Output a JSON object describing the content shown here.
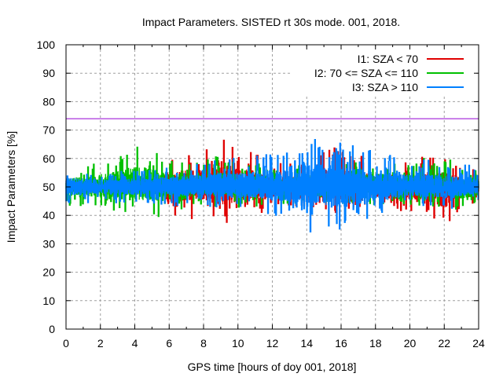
{
  "chart_data": {
    "type": "line",
    "title": "Impact Parameters. SISTED rt 30s mode. 001, 2018.",
    "xlabel": "GPS time [hours of doy 001, 2018]",
    "ylabel": "Impact Parameters [%]",
    "xlim": [
      0,
      24
    ],
    "ylim": [
      0,
      100
    ],
    "xticks": [
      "0",
      "2",
      "4",
      "6",
      "8",
      "10",
      "12",
      "14",
      "16",
      "18",
      "20",
      "22",
      "24"
    ],
    "yticks": [
      "0",
      "10",
      "20",
      "30",
      "40",
      "50",
      "60",
      "70",
      "80",
      "90",
      "100"
    ],
    "grid": true,
    "legend_position": "top-right",
    "reference_line": {
      "value": 74,
      "color": "#9400d3"
    },
    "series": [
      {
        "name": "I1: SZA < 70",
        "color": "#e00000",
        "hours": [
          0,
          1,
          2,
          3,
          4,
          5,
          6,
          7,
          8,
          9,
          10,
          11,
          12,
          13,
          14,
          15,
          16,
          17,
          18,
          19,
          20,
          21,
          22,
          23,
          24
        ],
        "min": [
          null,
          null,
          null,
          null,
          null,
          null,
          40,
          38,
          40,
          36,
          38,
          40,
          42,
          43,
          42,
          40,
          40,
          42,
          42,
          42,
          40,
          40,
          33,
          42,
          44
        ],
        "max": [
          null,
          null,
          null,
          null,
          null,
          null,
          61,
          64,
          63,
          70,
          66,
          62,
          60,
          60,
          58,
          66,
          63,
          62,
          60,
          60,
          60,
          61,
          62,
          58,
          56
        ]
      },
      {
        "name": "I2: 70 <= SZA <= 110",
        "color": "#00c000",
        "hours": [
          0,
          1,
          2,
          3,
          4,
          5,
          6,
          7,
          8,
          9,
          10,
          11,
          12,
          13,
          14,
          15,
          16,
          17,
          18,
          19,
          20,
          21,
          22,
          23,
          24
        ],
        "min": [
          43,
          43,
          42,
          41,
          40,
          39,
          40,
          42,
          43,
          43,
          42,
          43,
          44,
          43,
          43,
          43,
          44,
          43,
          43,
          44,
          43,
          42,
          43,
          40,
          45
        ],
        "max": [
          57,
          58,
          60,
          63,
          66,
          65,
          60,
          60,
          59,
          62,
          60,
          59,
          57,
          58,
          58,
          58,
          58,
          59,
          61,
          58,
          61,
          60,
          60,
          59,
          58
        ]
      },
      {
        "name": "I3: SZA > 110",
        "color": "#0080ff",
        "hours": [
          0,
          1,
          2,
          3,
          4,
          5,
          6,
          7,
          8,
          9,
          10,
          11,
          12,
          13,
          14,
          15,
          16,
          17,
          18,
          19,
          20,
          21,
          22,
          23,
          24
        ],
        "min": [
          44,
          44,
          45,
          44,
          44,
          44,
          43,
          43,
          43,
          42,
          42,
          41,
          40,
          38,
          33,
          36,
          34,
          38,
          38,
          40,
          42,
          42,
          42,
          42,
          45
        ],
        "max": [
          57,
          57,
          56,
          56,
          57,
          57,
          58,
          59,
          60,
          62,
          61,
          61,
          62,
          64,
          70,
          68,
          66,
          64,
          63,
          61,
          60,
          60,
          59,
          58,
          58
        ]
      }
    ]
  }
}
